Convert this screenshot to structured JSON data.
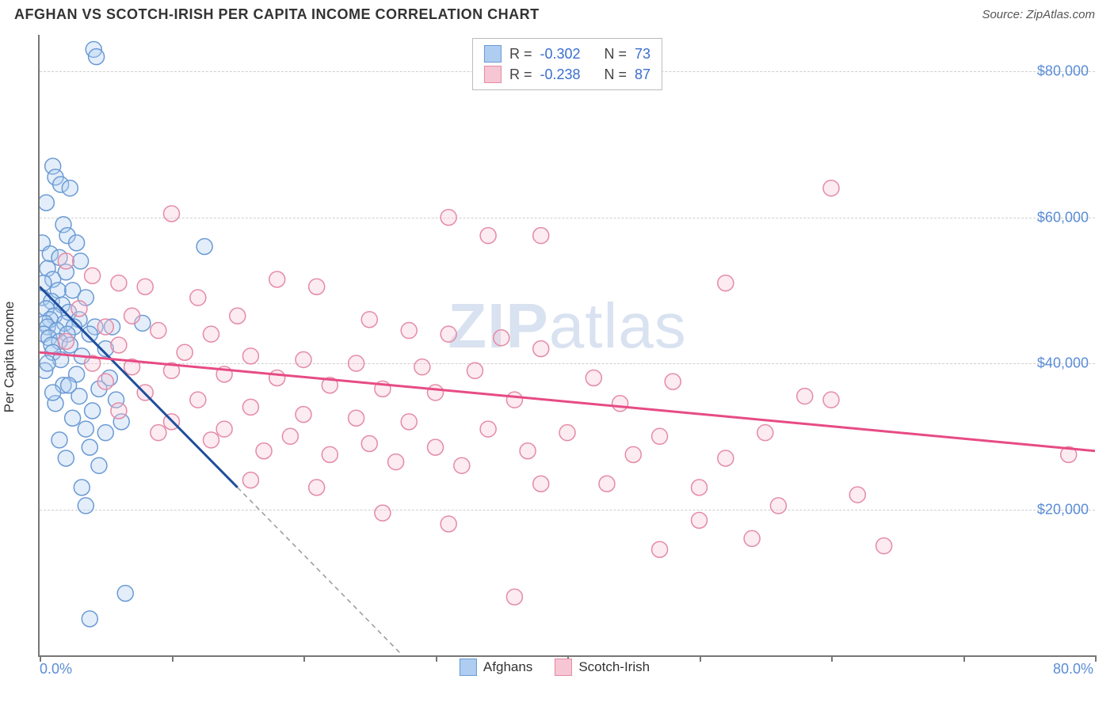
{
  "title": "AFGHAN VS SCOTCH-IRISH PER CAPITA INCOME CORRELATION CHART",
  "source": "Source: ZipAtlas.com",
  "watermark": "ZIPatlas",
  "chart": {
    "type": "scatter",
    "ylabel": "Per Capita Income",
    "xlim": [
      0,
      80
    ],
    "ylim": [
      0,
      85000
    ],
    "yticks": [
      20000,
      40000,
      60000,
      80000
    ],
    "ytick_labels": [
      "$20,000",
      "$40,000",
      "$60,000",
      "$80,000"
    ],
    "xtick_positions": [
      0,
      10,
      20,
      30,
      40,
      50,
      60,
      70,
      80
    ],
    "xaxis_min_label": "0.0%",
    "xaxis_max_label": "80.0%",
    "background_color": "#ffffff",
    "grid_color": "#cfcfcf",
    "marker_radius": 10,
    "series": [
      {
        "name": "Afghans",
        "r": -0.302,
        "n": 73,
        "fill": "#aecdf0",
        "stroke": "#6b9ad4",
        "trend_color": "#1f4e9c",
        "trend": {
          "x1": 0,
          "y1": 50500,
          "x2": 15,
          "y2": 23000
        },
        "trend_ext": {
          "x1": 15,
          "y1": 23000,
          "x2": 27.5,
          "y2": 0
        },
        "points": [
          [
            4.1,
            83000
          ],
          [
            4.3,
            82000
          ],
          [
            1.0,
            67000
          ],
          [
            1.2,
            65500
          ],
          [
            1.6,
            64500
          ],
          [
            2.3,
            64000
          ],
          [
            0.5,
            62000
          ],
          [
            1.8,
            59000
          ],
          [
            2.1,
            57500
          ],
          [
            0.2,
            56500
          ],
          [
            2.8,
            56500
          ],
          [
            0.8,
            55000
          ],
          [
            1.5,
            54500
          ],
          [
            3.1,
            54000
          ],
          [
            0.6,
            53000
          ],
          [
            2.0,
            52500
          ],
          [
            1.0,
            51500
          ],
          [
            0.3,
            51000
          ],
          [
            1.4,
            50000
          ],
          [
            2.5,
            50000
          ],
          [
            0.2,
            49000
          ],
          [
            3.5,
            49000
          ],
          [
            0.9,
            48500
          ],
          [
            1.7,
            48000
          ],
          [
            0.5,
            47500
          ],
          [
            2.2,
            47000
          ],
          [
            1.1,
            46500
          ],
          [
            0.8,
            46000
          ],
          [
            3.0,
            46000
          ],
          [
            0.4,
            45500
          ],
          [
            1.9,
            45500
          ],
          [
            0.6,
            45000
          ],
          [
            2.6,
            45000
          ],
          [
            4.2,
            45000
          ],
          [
            5.5,
            45000
          ],
          [
            7.8,
            45500
          ],
          [
            1.3,
            44500
          ],
          [
            0.3,
            44000
          ],
          [
            2.1,
            44000
          ],
          [
            3.8,
            44000
          ],
          [
            0.7,
            43500
          ],
          [
            1.5,
            43000
          ],
          [
            0.9,
            42500
          ],
          [
            2.3,
            42500
          ],
          [
            5.0,
            42000
          ],
          [
            1.0,
            41500
          ],
          [
            3.2,
            41000
          ],
          [
            12.5,
            56000
          ],
          [
            1.6,
            40500
          ],
          [
            0.4,
            39000
          ],
          [
            2.8,
            38500
          ],
          [
            5.3,
            38000
          ],
          [
            1.8,
            37000
          ],
          [
            4.5,
            36500
          ],
          [
            3.0,
            35500
          ],
          [
            5.8,
            35000
          ],
          [
            1.2,
            34500
          ],
          [
            4.0,
            33500
          ],
          [
            2.5,
            32500
          ],
          [
            6.2,
            32000
          ],
          [
            3.5,
            31000
          ],
          [
            5.0,
            30500
          ],
          [
            1.5,
            29500
          ],
          [
            3.8,
            28500
          ],
          [
            2.0,
            27000
          ],
          [
            4.5,
            26000
          ],
          [
            3.2,
            23000
          ],
          [
            3.5,
            20500
          ],
          [
            6.5,
            8500
          ],
          [
            3.8,
            5000
          ],
          [
            2.2,
            37000
          ],
          [
            1.0,
            36000
          ],
          [
            0.6,
            40000
          ]
        ]
      },
      {
        "name": "Scotch-Irish",
        "r": -0.238,
        "n": 87,
        "fill": "#f6c6d4",
        "stroke": "#e48ba6",
        "trend_color": "#e74b84",
        "trend": {
          "x1": 0,
          "y1": 41500,
          "x2": 80,
          "y2": 28000
        },
        "points": [
          [
            60,
            64000
          ],
          [
            10,
            60500
          ],
          [
            31,
            60000
          ],
          [
            34,
            57500
          ],
          [
            38,
            57500
          ],
          [
            2,
            54000
          ],
          [
            4,
            52000
          ],
          [
            6,
            51000
          ],
          [
            8,
            50500
          ],
          [
            18,
            51500
          ],
          [
            21,
            50500
          ],
          [
            12,
            49000
          ],
          [
            52,
            51000
          ],
          [
            3,
            47500
          ],
          [
            7,
            46500
          ],
          [
            15,
            46500
          ],
          [
            25,
            46000
          ],
          [
            28,
            44500
          ],
          [
            31,
            44000
          ],
          [
            35,
            43500
          ],
          [
            5,
            45000
          ],
          [
            9,
            44500
          ],
          [
            13,
            44000
          ],
          [
            38,
            42000
          ],
          [
            2,
            43000
          ],
          [
            6,
            42500
          ],
          [
            11,
            41500
          ],
          [
            16,
            41000
          ],
          [
            20,
            40500
          ],
          [
            24,
            40000
          ],
          [
            29,
            39500
          ],
          [
            33,
            39000
          ],
          [
            42,
            38000
          ],
          [
            48,
            37500
          ],
          [
            4,
            40000
          ],
          [
            7,
            39500
          ],
          [
            10,
            39000
          ],
          [
            14,
            38500
          ],
          [
            18,
            38000
          ],
          [
            22,
            37000
          ],
          [
            26,
            36500
          ],
          [
            30,
            36000
          ],
          [
            36,
            35000
          ],
          [
            44,
            34500
          ],
          [
            58,
            35500
          ],
          [
            5,
            37500
          ],
          [
            8,
            36000
          ],
          [
            12,
            35000
          ],
          [
            16,
            34000
          ],
          [
            20,
            33000
          ],
          [
            24,
            32500
          ],
          [
            28,
            32000
          ],
          [
            34,
            31000
          ],
          [
            40,
            30500
          ],
          [
            47,
            30000
          ],
          [
            55,
            30500
          ],
          [
            60,
            35000
          ],
          [
            6,
            33500
          ],
          [
            10,
            32000
          ],
          [
            14,
            31000
          ],
          [
            19,
            30000
          ],
          [
            25,
            29000
          ],
          [
            30,
            28500
          ],
          [
            37,
            28000
          ],
          [
            45,
            27500
          ],
          [
            52,
            27000
          ],
          [
            78,
            27500
          ],
          [
            9,
            30500
          ],
          [
            13,
            29500
          ],
          [
            17,
            28000
          ],
          [
            22,
            27500
          ],
          [
            27,
            26500
          ],
          [
            32,
            26000
          ],
          [
            38,
            23500
          ],
          [
            43,
            23500
          ],
          [
            50,
            23000
          ],
          [
            56,
            20500
          ],
          [
            62,
            22000
          ],
          [
            26,
            19500
          ],
          [
            31,
            18000
          ],
          [
            36,
            8000
          ],
          [
            47,
            14500
          ],
          [
            50,
            18500
          ],
          [
            54,
            16000
          ],
          [
            64,
            15000
          ],
          [
            16,
            24000
          ],
          [
            21,
            23000
          ]
        ]
      }
    ]
  }
}
